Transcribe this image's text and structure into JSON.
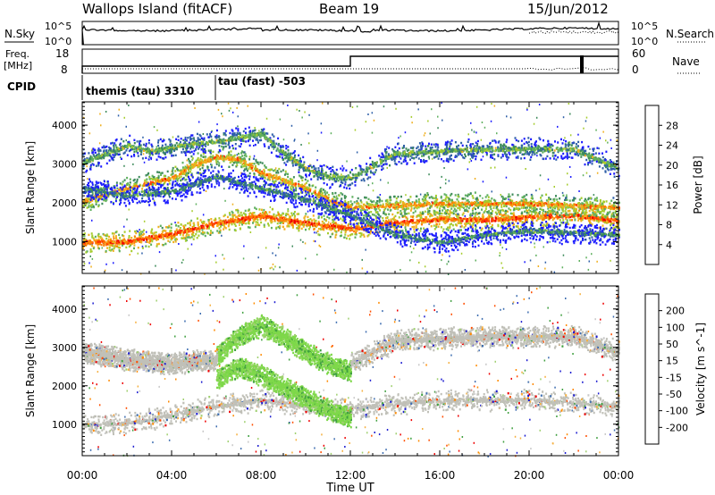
{
  "header": {
    "station": "Wallops Island (fitACF)",
    "beam": "Beam 19",
    "date": "15/Jun/2012"
  },
  "status_panels": {
    "nsky_label": "N.Sky",
    "nsearch_label": "N.Search",
    "noise_ticks": [
      "10^5",
      "10^0"
    ],
    "freq_label_1": "Freq.",
    "freq_label_2": "[MHz]",
    "freq_ticks": [
      "18",
      "8"
    ],
    "nave_label": "Nave",
    "nave_ticks": [
      "60",
      "0"
    ],
    "cpid_label": "CPID",
    "cpid_modes": [
      {
        "text": "themis (tau) 3310",
        "start_hour": 0
      },
      {
        "text": "tau (fast) -503",
        "start_hour": 6
      }
    ]
  },
  "colors": {
    "power_scale": [
      "#1c1cff",
      "#2e5fa8",
      "#3d8a5a",
      "#5fb05f",
      "#a6cc2e",
      "#f0b020",
      "#ff7e00",
      "#ff3800",
      "#ee0000"
    ],
    "velocity_scale": [
      "#ee0000",
      "#ff4e00",
      "#ff8a00",
      "#f5b040",
      "#c8c8c8",
      "#a0d070",
      "#40a040",
      "#3d6db0",
      "#1c1cd0"
    ],
    "ground_scatter": "#c0c0b8"
  },
  "chart_data": [
    {
      "type": "heatmap",
      "name": "Power",
      "ylabel": "Slant Range [km]",
      "xlabel": "Time UT",
      "ylim": [
        180,
        4600
      ],
      "xlim": [
        0,
        24
      ],
      "y_ticks": [
        "1000",
        "2000",
        "3000",
        "4000"
      ],
      "x_ticks": [
        "00:00",
        "04:00",
        "08:00",
        "12:00",
        "16:00",
        "20:00",
        "00:00"
      ],
      "colorbar_label": "Power [dB]",
      "colorbar_ticks": [
        "4",
        "8",
        "12",
        "16",
        "20",
        "24",
        "28"
      ],
      "bands": [
        {
          "points": [
            [
              0,
              1000
            ],
            [
              2,
              1020
            ],
            [
              4,
              1220
            ],
            [
              6,
              1500
            ],
            [
              8,
              1680
            ],
            [
              10,
              1500
            ],
            [
              12,
              1350
            ],
            [
              14,
              1520
            ],
            [
              16,
              1600
            ],
            [
              18,
              1580
            ],
            [
              20,
              1650
            ],
            [
              22,
              1700
            ],
            [
              24,
              1550
            ]
          ],
          "level": 28
        },
        {
          "points": [
            [
              0,
              2050
            ],
            [
              2,
              2400
            ],
            [
              4,
              2650
            ],
            [
              5,
              3000
            ],
            [
              6,
              3200
            ],
            [
              7,
              3150
            ],
            [
              8,
              2800
            ],
            [
              9,
              2600
            ],
            [
              10,
              2400
            ],
            [
              11,
              2100
            ],
            [
              12,
              1900
            ],
            [
              14,
              1950
            ],
            [
              16,
              2000
            ],
            [
              20,
              2000
            ],
            [
              24,
              1900
            ]
          ],
          "level": 24
        },
        {
          "points": [
            [
              0,
              3050
            ],
            [
              2,
              3500
            ],
            [
              3,
              3350
            ],
            [
              5,
              3550
            ],
            [
              6,
              3600
            ],
            [
              8,
              3800
            ],
            [
              9,
              3300
            ],
            [
              10,
              2900
            ],
            [
              11,
              2700
            ],
            [
              12,
              2650
            ],
            [
              14,
              3300
            ],
            [
              18,
              3400
            ],
            [
              22,
              3400
            ],
            [
              24,
              2900
            ]
          ],
          "level": 16
        },
        {
          "points": [
            [
              0,
              2400
            ],
            [
              2,
              2200
            ],
            [
              4,
              2300
            ],
            [
              6,
              2700
            ],
            [
              8,
              2400
            ],
            [
              10,
              2100
            ],
            [
              12,
              1700
            ],
            [
              14,
              1200
            ],
            [
              16,
              1000
            ],
            [
              18,
              1200
            ],
            [
              20,
              1300
            ],
            [
              24,
              1200
            ]
          ],
          "level": 12
        }
      ]
    },
    {
      "type": "heatmap",
      "name": "Velocity",
      "ylabel": "Slant Range [km]",
      "xlabel": "Time UT",
      "ylim": [
        180,
        4600
      ],
      "xlim": [
        0,
        24
      ],
      "y_ticks": [
        "1000",
        "2000",
        "3000",
        "4000"
      ],
      "x_ticks": [
        "00:00",
        "04:00",
        "08:00",
        "12:00",
        "16:00",
        "20:00",
        "00:00"
      ],
      "colorbar_label": "Velocity [m s^-1]",
      "colorbar_ticks": [
        "200",
        "100",
        "50",
        "15",
        "-15",
        "-50",
        "-100",
        "-200"
      ],
      "bands": [
        {
          "points": [
            [
              0,
              1000
            ],
            [
              2,
              1050
            ],
            [
              4,
              1250
            ],
            [
              6,
              1500
            ],
            [
              8,
              1650
            ],
            [
              10,
              1500
            ],
            [
              12,
              1400
            ],
            [
              14,
              1550
            ],
            [
              16,
              1650
            ],
            [
              20,
              1650
            ],
            [
              24,
              1500
            ]
          ],
          "level": 0
        },
        {
          "points": [
            [
              6,
              2800
            ],
            [
              7,
              3300
            ],
            [
              8,
              3600
            ],
            [
              9,
              3300
            ],
            [
              10,
              2900
            ],
            [
              11,
              2600
            ],
            [
              12,
              2400
            ]
          ],
          "level": 70
        },
        {
          "points": [
            [
              6,
              2200
            ],
            [
              7,
              2500
            ],
            [
              8,
              2300
            ],
            [
              9,
              2000
            ],
            [
              10,
              1700
            ],
            [
              11,
              1400
            ],
            [
              12,
              1200
            ]
          ],
          "level": 60
        },
        {
          "points": [
            [
              12,
              2600
            ],
            [
              14,
              3200
            ],
            [
              18,
              3300
            ],
            [
              22,
              3300
            ],
            [
              24,
              2900
            ]
          ],
          "level": 0
        },
        {
          "points": [
            [
              0,
              2900
            ],
            [
              2,
              2700
            ],
            [
              4,
              2600
            ],
            [
              6,
              2700
            ]
          ],
          "level": 0
        }
      ]
    }
  ]
}
